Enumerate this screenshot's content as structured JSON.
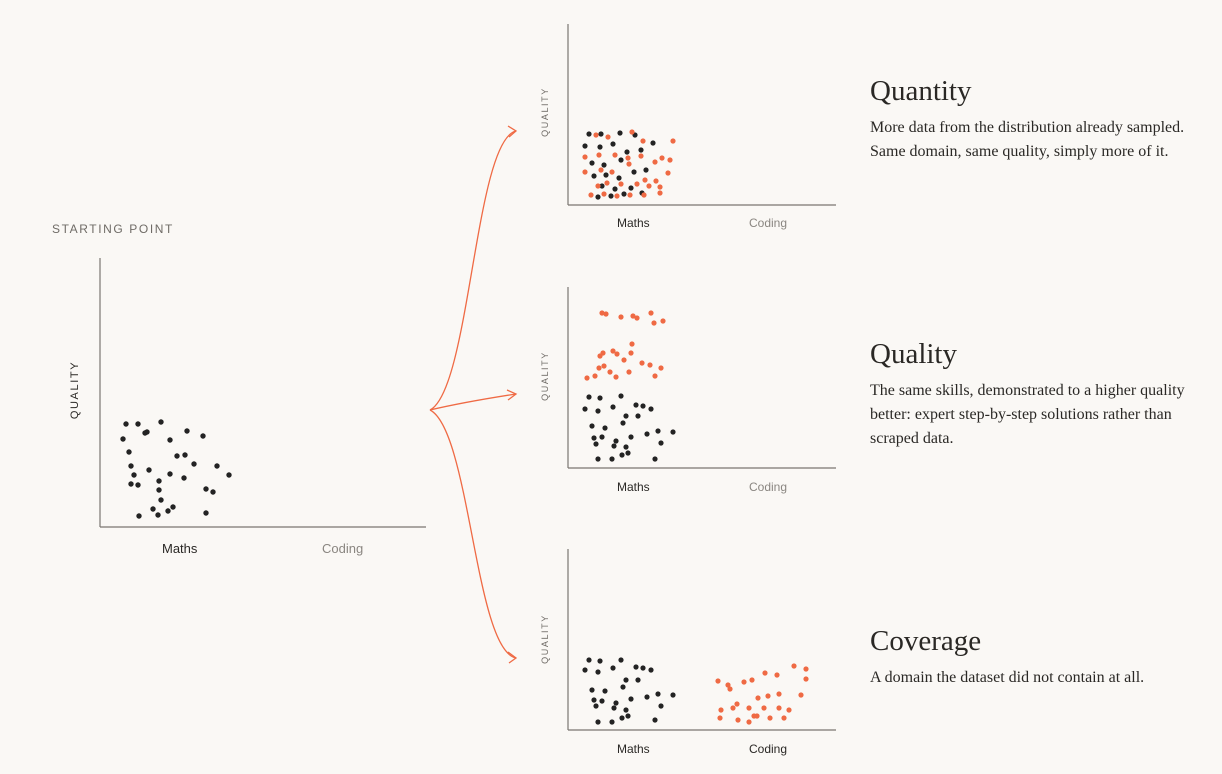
{
  "starting_point": {
    "label": "STARTING POINT",
    "ylabel": "QUALITY",
    "xlabels": [
      "Maths",
      "Coding"
    ]
  },
  "panels": [
    {
      "title": "Quantity",
      "description": "More data from the distribution already sampled. Same domain, same quality, simply more of it.",
      "ylabel": "QUALITY",
      "xlabels": [
        "Maths",
        "Coding"
      ]
    },
    {
      "title": "Quality",
      "description": "The same skills, demonstrated to a higher quality better: expert step-by-step solutions rather than scraped data.",
      "ylabel": "QUALITY",
      "xlabels": [
        "Maths",
        "Coding"
      ]
    },
    {
      "title": "Coverage",
      "description": "A domain the dataset did not contain at all.",
      "ylabel": "QUALITY",
      "xlabels": [
        "Maths",
        "Coding"
      ]
    }
  ],
  "colors": {
    "existing_points": "#232323",
    "new_points": "#ef6a44",
    "arrows": "#ef6a44",
    "axis": "#7a7671",
    "background": "#faf8f5"
  }
}
